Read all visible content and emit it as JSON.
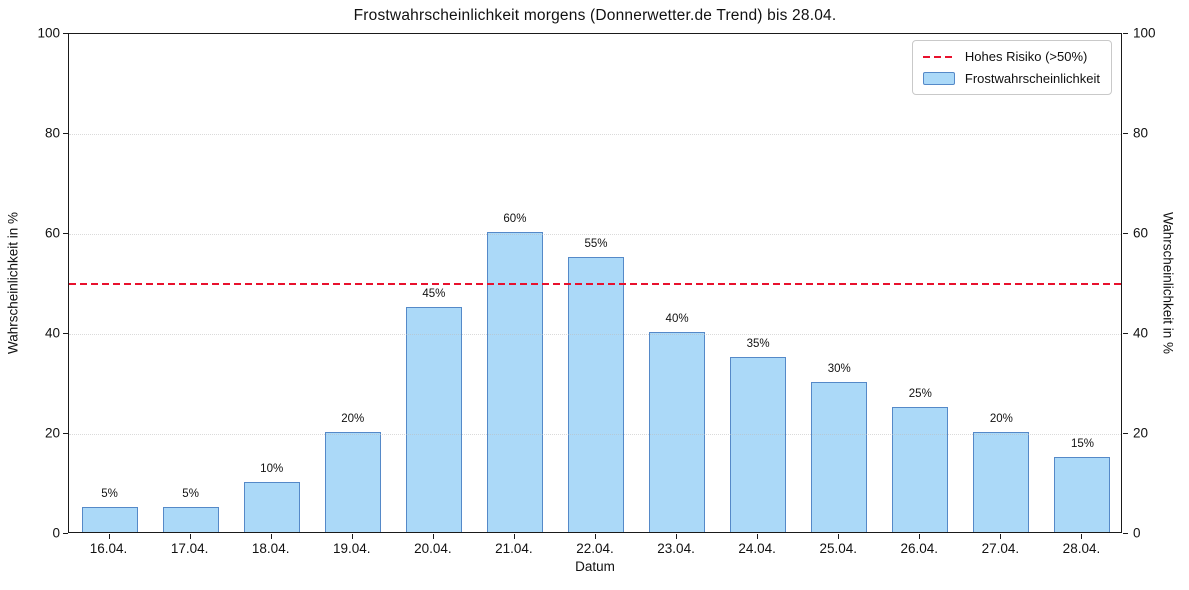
{
  "chart_data": {
    "type": "bar",
    "title": "Frostwahrscheinlichkeit morgens (Donnerwetter.de Trend) bis 28.04.",
    "xlabel": "Datum",
    "ylabel_left": "Wahrscheinlichkeit in %",
    "ylabel_right": "Wahrscheinlichkeit in %",
    "categories": [
      "16.04.",
      "17.04.",
      "18.04.",
      "19.04.",
      "20.04.",
      "21.04.",
      "22.04.",
      "23.04.",
      "24.04.",
      "25.04.",
      "26.04.",
      "27.04.",
      "28.04."
    ],
    "values": [
      5,
      5,
      10,
      20,
      45,
      60,
      55,
      40,
      35,
      30,
      25,
      20,
      15
    ],
    "bar_labels": [
      "5%",
      "5%",
      "10%",
      "20%",
      "45%",
      "60%",
      "55%",
      "40%",
      "35%",
      "30%",
      "25%",
      "20%",
      "15%"
    ],
    "ylim": [
      0,
      100
    ],
    "yticks": [
      0,
      20,
      40,
      60,
      80,
      100
    ],
    "gridlines": [
      20,
      40,
      60,
      80
    ],
    "threshold": {
      "value": 50
    },
    "legend": [
      {
        "label": "Hohes Risiko (>50%)",
        "marker": "dashed-line"
      },
      {
        "label": "Frostwahrscheinlichkeit",
        "marker": "filled-box"
      }
    ],
    "legend_position": "upper right",
    "grid": "horizontal-dotted",
    "colors": {
      "bar_fill": "#abd9f8",
      "bar_edge": "#5589c8",
      "threshold": "#e8112d",
      "grid": "#bdbdbd",
      "axis": "#1a1a1a"
    }
  }
}
